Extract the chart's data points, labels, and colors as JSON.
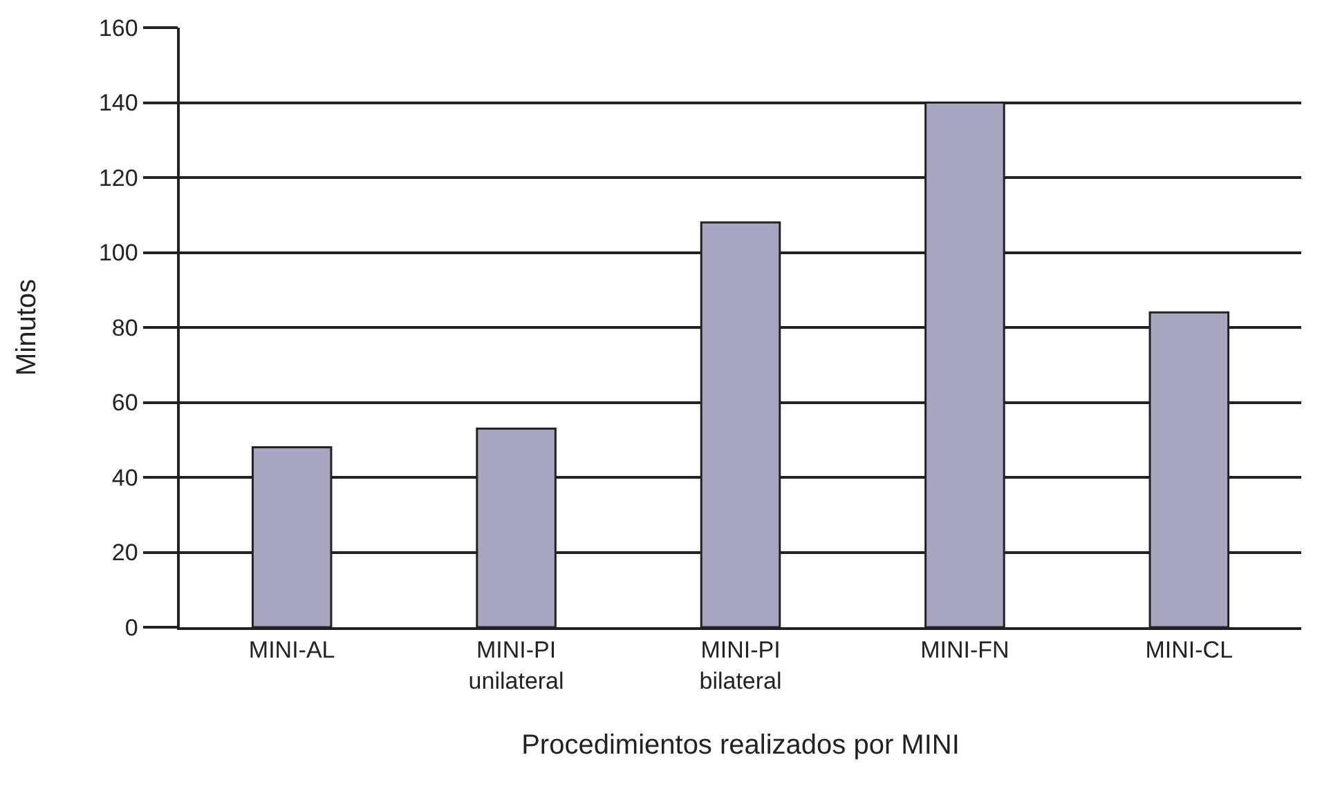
{
  "chart_data": {
    "type": "bar",
    "xlabel": "Procedimientos realizados por MINI",
    "ylabel": "Minutos",
    "categories": [
      "MINI-AL",
      "MINI-PI\nunilateral",
      "MINI-PI\nbilateral",
      "MINI-FN",
      "MINI-CL"
    ],
    "values": [
      48,
      53,
      108,
      140,
      84
    ],
    "color": "#a7a5bf",
    "ylim": [
      0,
      160
    ],
    "yticks": [
      0,
      20,
      40,
      60,
      80,
      100,
      120,
      140,
      160
    ],
    "grid": "y"
  }
}
